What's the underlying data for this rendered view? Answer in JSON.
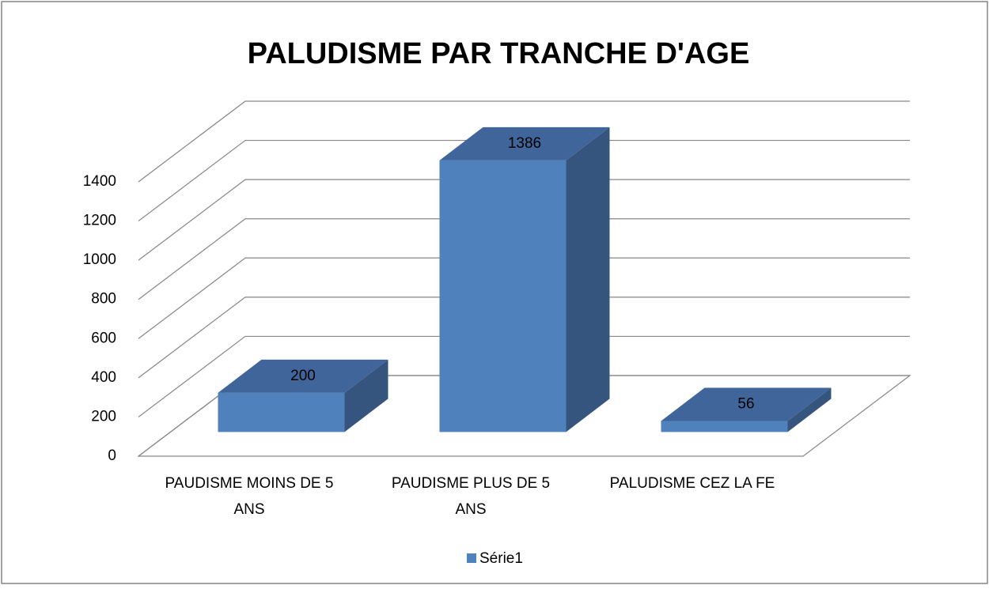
{
  "chart_data": {
    "type": "bar3d",
    "title": "PALUDISME PAR TRANCHE D'AGE",
    "categories": [
      "PAUDISME MOINS DE 5 ANS",
      "PAUDISME PLUS DE 5 ANS",
      "PALUDISME CEZ LA FE"
    ],
    "series": [
      {
        "name": "Série1",
        "color": "#4f81bd",
        "values": [
          200,
          1386,
          56
        ]
      }
    ],
    "ylim": [
      0,
      1400
    ],
    "yticks": [
      0,
      200,
      400,
      600,
      800,
      1000,
      1200,
      1400
    ],
    "grid": true,
    "legend": "bottom"
  }
}
